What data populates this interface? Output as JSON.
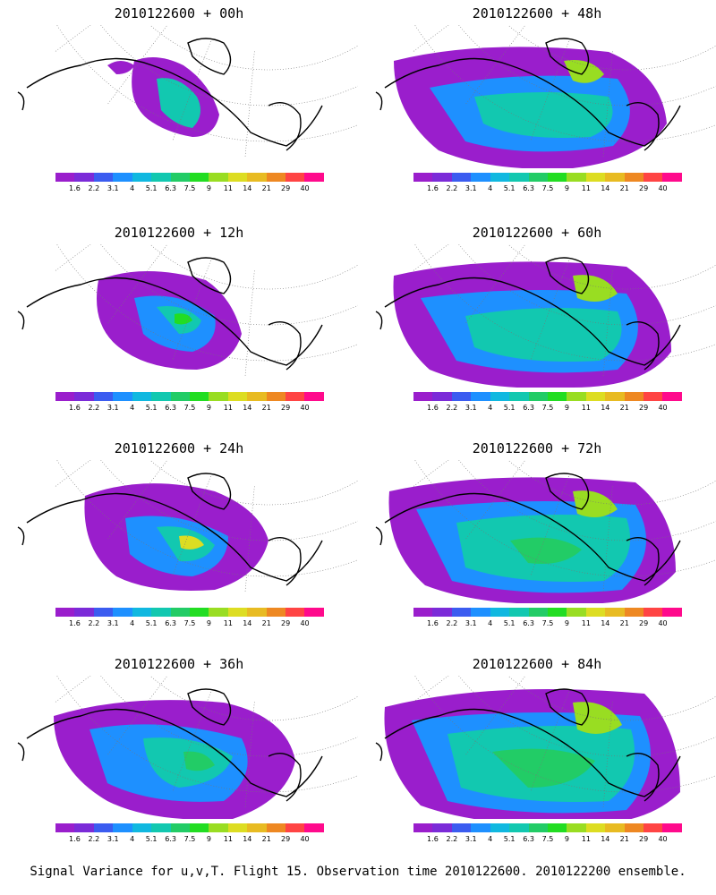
{
  "figure": {
    "caption": "Signal Variance for u,v,T. Flight 15. Observation time 2010122600. 2010122200 ensemble."
  },
  "colorbar": {
    "labels": [
      "1.6",
      "2.2",
      "3.1",
      "4",
      "5.1",
      "6.3",
      "7.5",
      "9",
      "11",
      "14",
      "21",
      "29",
      "40"
    ],
    "colors": [
      "#9a1ecc",
      "#7b2bd8",
      "#3b5cf0",
      "#1e90ff",
      "#10b8e0",
      "#12c8b0",
      "#22cc66",
      "#22dd22",
      "#99dd22",
      "#dddd22",
      "#e8bb22",
      "#ee8822",
      "#ff4444",
      "#ff0a8c"
    ]
  },
  "panels": [
    {
      "title": "2010122600 + 00h",
      "stage": 0
    },
    {
      "title": "2010122600 + 48h",
      "stage": 4
    },
    {
      "title": "2010122600 + 12h",
      "stage": 1
    },
    {
      "title": "2010122600 + 60h",
      "stage": 5
    },
    {
      "title": "2010122600 + 24h",
      "stage": 2
    },
    {
      "title": "2010122600 + 72h",
      "stage": 6
    },
    {
      "title": "2010122600 + 36h",
      "stage": 3
    },
    {
      "title": "2010122600 + 84h",
      "stage": 7
    }
  ]
}
